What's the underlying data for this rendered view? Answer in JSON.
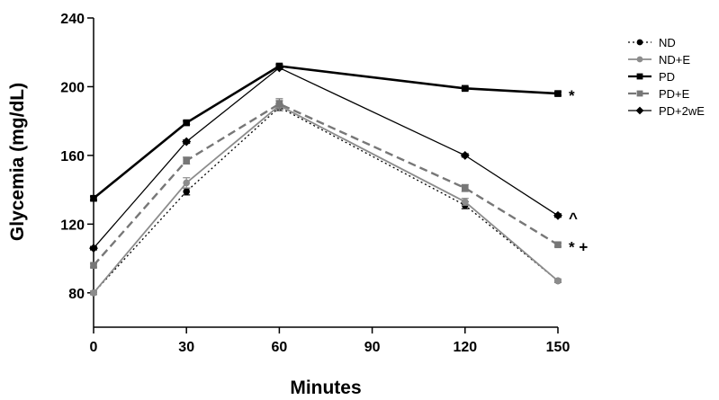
{
  "chart_data": {
    "type": "line",
    "title": "",
    "xlabel": "Minutes",
    "ylabel": "Glycemia (mg/dL)",
    "x": [
      0,
      30,
      60,
      120,
      150
    ],
    "xticks": [
      0,
      30,
      60,
      90,
      120,
      150
    ],
    "yticks": [
      80,
      120,
      160,
      200,
      240
    ],
    "xlim": [
      0,
      150
    ],
    "ylim": [
      60,
      240
    ],
    "grid": false,
    "legend_position": "right",
    "series": [
      {
        "name": "ND",
        "values": [
          80,
          139,
          188,
          131,
          87
        ],
        "errors": [
          1,
          2,
          2,
          2,
          1
        ],
        "color": "#000000",
        "marker": "circle",
        "dash": "2,3",
        "width": 1.3
      },
      {
        "name": "ND+E",
        "values": [
          80,
          144,
          189,
          133,
          87
        ],
        "errors": [
          1,
          3,
          3,
          2,
          1
        ],
        "color": "#8c8c8c",
        "marker": "circle",
        "dash": "",
        "width": 1.8
      },
      {
        "name": "PD",
        "values": [
          135,
          179,
          212,
          199,
          196
        ],
        "errors": [
          1,
          1,
          1,
          1,
          1
        ],
        "color": "#000000",
        "marker": "square",
        "dash": "",
        "width": 2.6
      },
      {
        "name": "PD+E",
        "values": [
          96,
          157,
          190,
          141,
          108
        ],
        "errors": [
          1,
          2,
          3,
          2,
          1
        ],
        "color": "#777777",
        "marker": "square",
        "dash": "9,5",
        "width": 2.4
      },
      {
        "name": "PD+2wE",
        "values": [
          106,
          168,
          211,
          160,
          125
        ],
        "errors": [
          1,
          1,
          1,
          1,
          1
        ],
        "color": "#000000",
        "marker": "diamond",
        "dash": "",
        "width": 1.3
      }
    ],
    "annotations": [
      {
        "text": "*",
        "x": 150,
        "y": 196
      },
      {
        "text": "^",
        "x": 150,
        "y": 125
      },
      {
        "text": "* +",
        "x": 150,
        "y": 108
      }
    ]
  }
}
